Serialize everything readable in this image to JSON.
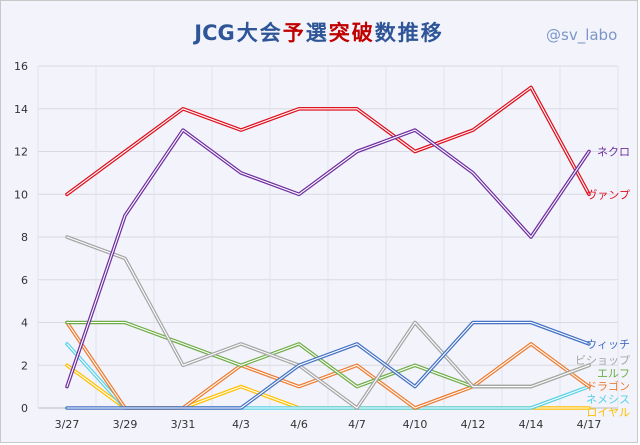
{
  "chart_data": {
    "type": "line",
    "title": {
      "segments": [
        {
          "text": "JCG",
          "color": "#2e5597"
        },
        {
          "text": "大",
          "color": "#2e5597"
        },
        {
          "text": "会",
          "color": "#2e5597"
        },
        {
          "text": "予",
          "color": "#c00000"
        },
        {
          "text": "選",
          "color": "#2e5597"
        },
        {
          "text": "突",
          "color": "#c00000"
        },
        {
          "text": "破",
          "color": "#c00000"
        },
        {
          "text": "数",
          "color": "#2e5597"
        },
        {
          "text": "推",
          "color": "#2e5597"
        },
        {
          "text": "移",
          "color": "#2e5597"
        }
      ]
    },
    "watermark": "@sv_labo",
    "categories": [
      "3/27",
      "3/29",
      "3/31",
      "4/3",
      "4/6",
      "4/7",
      "4/10",
      "4/12",
      "4/14",
      "4/17"
    ],
    "ylim": [
      0,
      16
    ],
    "yticks": [
      0,
      2,
      4,
      6,
      8,
      10,
      12,
      14,
      16
    ],
    "grid": true,
    "series": [
      {
        "name": "ネクロ",
        "color": "#7030a0",
        "values": [
          1,
          9,
          13,
          11,
          10,
          12,
          13,
          11,
          8,
          12
        ]
      },
      {
        "name": "ヴァンプ",
        "color": "#e0101e",
        "values": [
          10,
          12,
          14,
          13,
          14,
          14,
          12,
          13,
          15,
          10
        ]
      },
      {
        "name": "ウィッチ",
        "color": "#4472c4",
        "values": [
          0,
          0,
          0,
          0,
          2,
          3,
          1,
          4,
          4,
          3
        ]
      },
      {
        "name": "ビショップ",
        "color": "#a6a6a6",
        "values": [
          8,
          7,
          2,
          3,
          2,
          0,
          4,
          1,
          1,
          2
        ]
      },
      {
        "name": "エルフ",
        "color": "#70ad47",
        "values": [
          4,
          4,
          3,
          2,
          3,
          1,
          2,
          1,
          1,
          2
        ]
      },
      {
        "name": "ドラゴン",
        "color": "#ed7d31",
        "values": [
          4,
          0,
          0,
          2,
          1,
          2,
          0,
          1,
          3,
          1
        ]
      },
      {
        "name": "ネメシス",
        "color": "#5ad2e6",
        "values": [
          3,
          0,
          0,
          0,
          0,
          0,
          0,
          0,
          0,
          1
        ]
      },
      {
        "name": "ロイヤル",
        "color": "#ffc000",
        "values": [
          2,
          0,
          0,
          1,
          0,
          0,
          0,
          0,
          0,
          0
        ]
      }
    ]
  }
}
